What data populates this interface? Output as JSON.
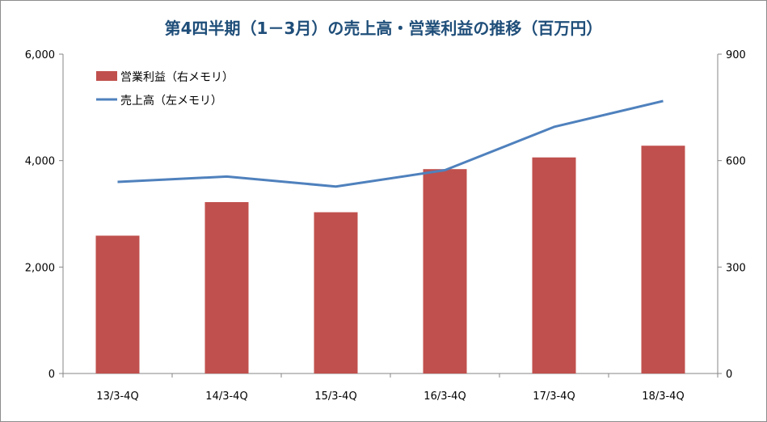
{
  "chart_data": {
    "type": "bar",
    "title": "第4四半期（1－3月）の売上高・営業利益の推移（百万円）",
    "categories": [
      "13/3-4Q",
      "14/3-4Q",
      "15/3-4Q",
      "16/3-4Q",
      "17/3-4Q",
      "18/3-4Q"
    ],
    "series": [
      {
        "name": "営業利益（右メモリ）",
        "kind": "bar",
        "axis": "left",
        "color": "#c0504d",
        "values": [
          2590,
          3220,
          3030,
          3840,
          4060,
          4280
        ]
      },
      {
        "name": "売上高（左メモリ）",
        "kind": "line",
        "axis": "right",
        "color": "#4f81bd",
        "values": [
          540,
          555,
          527,
          573,
          695,
          768
        ]
      }
    ],
    "y_left": {
      "min": 0,
      "max": 6000,
      "ticks": [
        "0",
        "2,000",
        "4,000",
        "6,000"
      ],
      "tick_values": [
        0,
        2000,
        4000,
        6000
      ]
    },
    "y_right": {
      "min": 0,
      "max": 900,
      "ticks": [
        "0",
        "300",
        "600",
        "900"
      ],
      "tick_values": [
        0,
        300,
        600,
        900
      ]
    },
    "grid": false,
    "legend_position": "top-left"
  }
}
